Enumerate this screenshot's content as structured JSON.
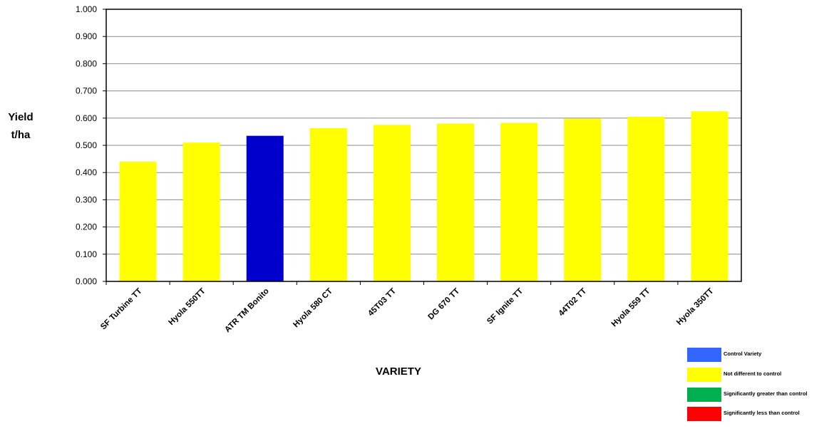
{
  "chart_data": {
    "type": "bar",
    "categories": [
      "SF Turbine TT",
      "Hyola 550TT",
      "ATR TM Bonito",
      "Hyola 580 CT",
      "45T03 TT",
      "DG 670 TT",
      "SF Ignite TT",
      "44T02 TT",
      "Hyola 559 TT",
      "Hyola 350TT"
    ],
    "values": [
      0.44,
      0.51,
      0.535,
      0.563,
      0.575,
      0.58,
      0.582,
      0.598,
      0.605,
      0.625
    ],
    "bar_colors": [
      "#ffff00",
      "#ffff00",
      "#0000cc",
      "#ffff00",
      "#ffff00",
      "#ffff00",
      "#ffff00",
      "#ffff00",
      "#ffff00",
      "#ffff00"
    ],
    "ylabel_line1": "Yield",
    "ylabel_line2": "t/ha",
    "xlabel": "VARIETY",
    "ylim": [
      0,
      1.0
    ],
    "yticks": [
      "0.000",
      "0.100",
      "0.200",
      "0.300",
      "0.400",
      "0.500",
      "0.600",
      "0.700",
      "0.800",
      "0.900",
      "1.000"
    ],
    "grid": true,
    "legend_position": "bottom-right",
    "legend": [
      {
        "label": "Control Variety",
        "color": "#3366ff"
      },
      {
        "label": "Not different to control",
        "color": "#ffff00"
      },
      {
        "label": "Significantly greater than control",
        "color": "#00b050"
      },
      {
        "label": "Significantly less than control",
        "color": "#ff0000"
      }
    ]
  }
}
